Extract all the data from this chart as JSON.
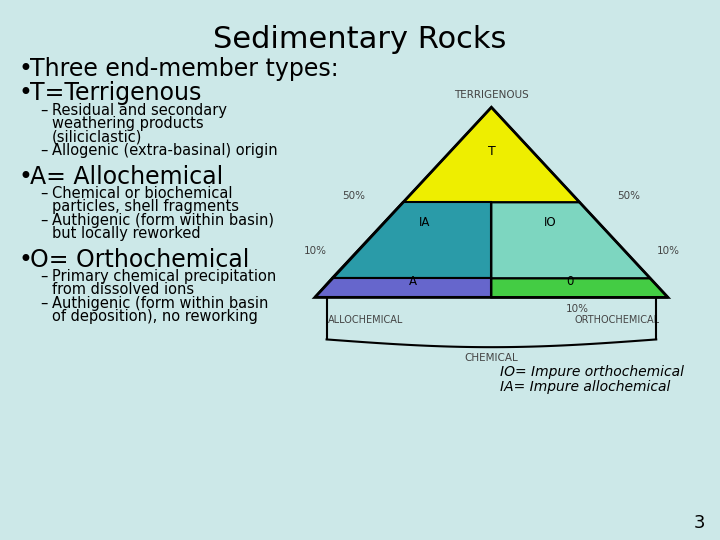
{
  "title": "Sedimentary Rocks",
  "bg_color": "#cce8e8",
  "title_fontsize": 22,
  "page_num": "3",
  "triangle_colors": {
    "T": "#eeee00",
    "IA": "#2a9ba8",
    "IO": "#7dd6c0",
    "A": "#6666cc",
    "O": "#44cc44"
  },
  "note_line1": "IO= Impure orthochemical",
  "note_line2": "IA= Impure allochemical"
}
